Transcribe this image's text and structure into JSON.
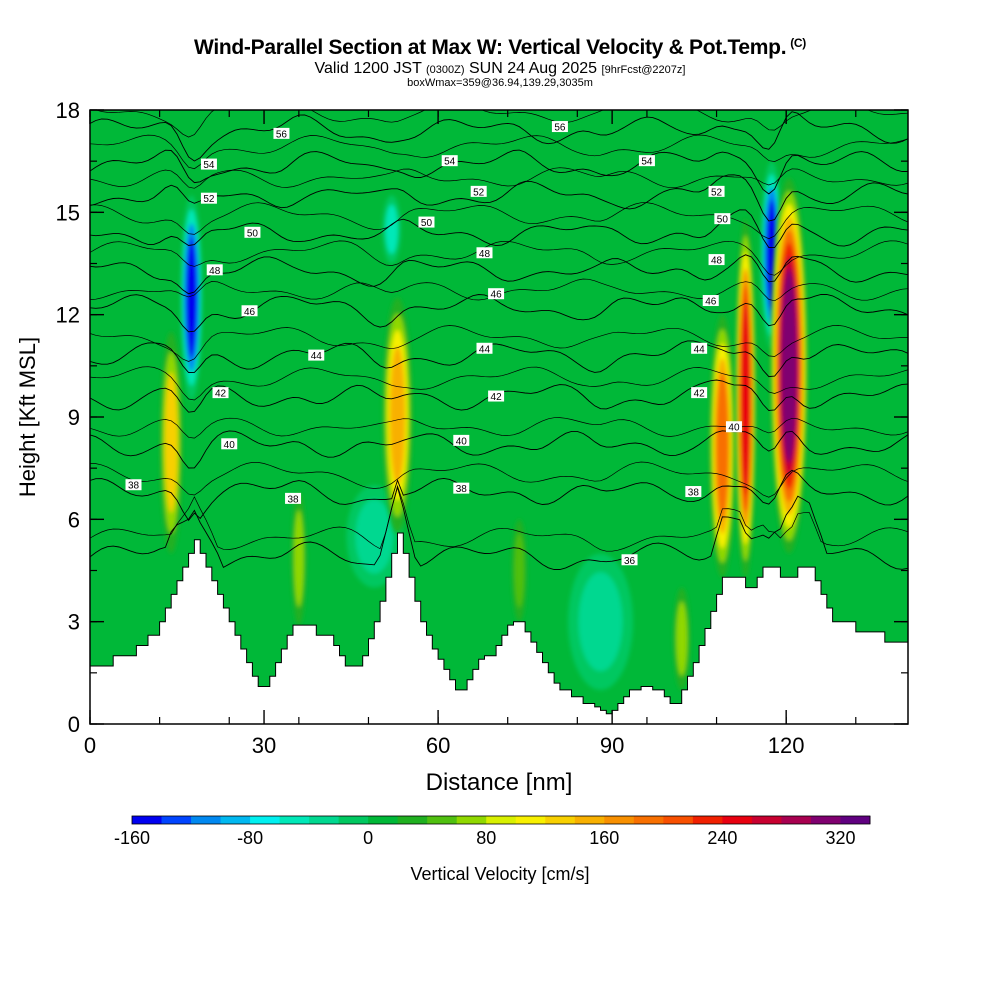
{
  "header": {
    "title": "Wind-Parallel Section at Max W: Vertical Velocity & Pot.Temp.",
    "title_mark": "(C)",
    "valid_prefix": "Valid 1200 JST",
    "valid_utc": "(0300Z)",
    "valid_date": "SUN 24 Aug 2025",
    "forecast_info": "[9hrFcst@2207z]",
    "box_info": "boxWmax=359@36.94,139.29,3035m"
  },
  "chart_data": {
    "type": "heatmap",
    "xlabel": "Distance [nm]",
    "ylabel": "Height [Kft MSL]",
    "xlim": [
      0,
      141
    ],
    "ylim": [
      0,
      18
    ],
    "x_ticks": [
      0,
      30,
      60,
      90,
      120
    ],
    "y_ticks": [
      0,
      3,
      6,
      9,
      12,
      15,
      18
    ],
    "background_w": 10,
    "terrain": [
      [
        0,
        1.7
      ],
      [
        3,
        1.7
      ],
      [
        4,
        2.0
      ],
      [
        7,
        2.0
      ],
      [
        8,
        2.3
      ],
      [
        9,
        2.3
      ],
      [
        10,
        2.6
      ],
      [
        11,
        2.6
      ],
      [
        12,
        3.0
      ],
      [
        13,
        3.4
      ],
      [
        14,
        3.8
      ],
      [
        15,
        4.2
      ],
      [
        16,
        4.6
      ],
      [
        17,
        5.0
      ],
      [
        18,
        5.4
      ],
      [
        19,
        5.0
      ],
      [
        20,
        4.6
      ],
      [
        21,
        4.2
      ],
      [
        22,
        3.8
      ],
      [
        23,
        3.4
      ],
      [
        24,
        3.0
      ],
      [
        25,
        2.6
      ],
      [
        26,
        2.2
      ],
      [
        27,
        1.8
      ],
      [
        28,
        1.4
      ],
      [
        29,
        1.1
      ],
      [
        30,
        1.1
      ],
      [
        31,
        1.4
      ],
      [
        32,
        1.8
      ],
      [
        33,
        2.2
      ],
      [
        34,
        2.6
      ],
      [
        35,
        2.9
      ],
      [
        38,
        2.9
      ],
      [
        39,
        2.6
      ],
      [
        41,
        2.6
      ],
      [
        42,
        2.3
      ],
      [
        43,
        2.0
      ],
      [
        44,
        1.7
      ],
      [
        46,
        1.7
      ],
      [
        47,
        2.0
      ],
      [
        48,
        2.5
      ],
      [
        49,
        3.0
      ],
      [
        50,
        3.6
      ],
      [
        51,
        4.3
      ],
      [
        52,
        5.0
      ],
      [
        53,
        5.6
      ],
      [
        54,
        5.0
      ],
      [
        55,
        4.3
      ],
      [
        56,
        3.6
      ],
      [
        57,
        3.0
      ],
      [
        58,
        2.6
      ],
      [
        59,
        2.2
      ],
      [
        60,
        1.9
      ],
      [
        61,
        1.6
      ],
      [
        62,
        1.3
      ],
      [
        63,
        1.0
      ],
      [
        64,
        1.0
      ],
      [
        65,
        1.3
      ],
      [
        66,
        1.6
      ],
      [
        67,
        1.9
      ],
      [
        68,
        2.0
      ],
      [
        70,
        2.3
      ],
      [
        71,
        2.6
      ],
      [
        72,
        2.9
      ],
      [
        73,
        3.0
      ],
      [
        75,
        2.7
      ],
      [
        76,
        2.4
      ],
      [
        77,
        2.1
      ],
      [
        78,
        1.8
      ],
      [
        79,
        1.5
      ],
      [
        80,
        1.2
      ],
      [
        81,
        1.0
      ],
      [
        83,
        0.8
      ],
      [
        85,
        0.6
      ],
      [
        87,
        0.5
      ],
      [
        88,
        0.4
      ],
      [
        89,
        0.3
      ],
      [
        90,
        0.4
      ],
      [
        91,
        0.6
      ],
      [
        92,
        0.8
      ],
      [
        93,
        1.0
      ],
      [
        95,
        1.1
      ],
      [
        97,
        1.0
      ],
      [
        99,
        0.8
      ],
      [
        100,
        0.6
      ],
      [
        101,
        0.6
      ],
      [
        102,
        1.0
      ],
      [
        103,
        1.4
      ],
      [
        104,
        1.8
      ],
      [
        105,
        2.3
      ],
      [
        106,
        2.8
      ],
      [
        107,
        3.3
      ],
      [
        108,
        3.8
      ],
      [
        109,
        4.3
      ],
      [
        112,
        4.3
      ],
      [
        113,
        4.0
      ],
      [
        114,
        4.0
      ],
      [
        115,
        4.3
      ],
      [
        116,
        4.6
      ],
      [
        118,
        4.6
      ],
      [
        119,
        4.3
      ],
      [
        121,
        4.3
      ],
      [
        122,
        4.6
      ],
      [
        124,
        4.6
      ],
      [
        125,
        4.2
      ],
      [
        126,
        3.8
      ],
      [
        127,
        3.4
      ],
      [
        128,
        3.0
      ],
      [
        131,
        3.0
      ],
      [
        132,
        2.7
      ],
      [
        136,
        2.7
      ],
      [
        137,
        2.4
      ],
      [
        140,
        2.4
      ],
      [
        141,
        2.0
      ]
    ],
    "updrafts": [
      {
        "x": 14,
        "ybot": 5.0,
        "ytop": 11.5,
        "w": 1.2,
        "peak": 120
      },
      {
        "x": 36,
        "ybot": 2.9,
        "ytop": 6.8,
        "w": 0.8,
        "peak": 70
      },
      {
        "x": 53,
        "ybot": 5.6,
        "ytop": 12.5,
        "w": 1.6,
        "peak": 140
      },
      {
        "x": 74,
        "ybot": 3.0,
        "ytop": 6.0,
        "w": 0.8,
        "peak": 50
      },
      {
        "x": 102,
        "ybot": 1.0,
        "ytop": 4.0,
        "w": 0.9,
        "peak": 70
      },
      {
        "x": 109,
        "ybot": 4.3,
        "ytop": 12.0,
        "w": 1.4,
        "peak": 180
      },
      {
        "x": 113,
        "ybot": 4.3,
        "ytop": 14.8,
        "w": 1.1,
        "peak": 250
      },
      {
        "x": 120.5,
        "ybot": 5.0,
        "ytop": 16.0,
        "w": 2.0,
        "peak": 300
      }
    ],
    "downdrafts": [
      {
        "x": 17.5,
        "ybot": 9.5,
        "ytop": 15.5,
        "w": 1.2,
        "peak": -160
      },
      {
        "x": 52,
        "ybot": 13.5,
        "ytop": 15.5,
        "w": 1.0,
        "peak": -60
      },
      {
        "x": 117.5,
        "ybot": 11.0,
        "ytop": 16.5,
        "w": 1.2,
        "peak": -160
      },
      {
        "x": 49,
        "ybot": 4.0,
        "ytop": 7.0,
        "w": 3.0,
        "peak": -30
      },
      {
        "x": 88,
        "ybot": 1.0,
        "ytop": 5.0,
        "w": 3.5,
        "peak": -30
      }
    ],
    "theta_contours": [
      {
        "level": 36,
        "y": 4.9
      },
      {
        "level": 38,
        "y": 6.8
      },
      {
        "level": 40,
        "y": 8.2
      },
      {
        "level": 42,
        "y": 9.6
      },
      {
        "level": 44,
        "y": 10.8
      },
      {
        "level": 46,
        "y": 12.2
      },
      {
        "level": 48,
        "y": 13.3
      },
      {
        "level": 50,
        "y": 14.4
      },
      {
        "level": 52,
        "y": 15.5
      },
      {
        "level": 54,
        "y": 16.4
      },
      {
        "level": 56,
        "y": 17.4
      }
    ],
    "contour_labels": [
      {
        "text": "56",
        "x": 33,
        "y": 17.3
      },
      {
        "text": "56",
        "x": 81,
        "y": 17.5
      },
      {
        "text": "54",
        "x": 20.5,
        "y": 16.4
      },
      {
        "text": "54",
        "x": 62,
        "y": 16.5
      },
      {
        "text": "54",
        "x": 96,
        "y": 16.5
      },
      {
        "text": "52",
        "x": 20.5,
        "y": 15.4
      },
      {
        "text": "52",
        "x": 67,
        "y": 15.6
      },
      {
        "text": "52",
        "x": 108,
        "y": 15.6
      },
      {
        "text": "50",
        "x": 28,
        "y": 14.4
      },
      {
        "text": "50",
        "x": 58,
        "y": 14.7
      },
      {
        "text": "50",
        "x": 109,
        "y": 14.8
      },
      {
        "text": "48",
        "x": 21.5,
        "y": 13.3
      },
      {
        "text": "48",
        "x": 68,
        "y": 13.8
      },
      {
        "text": "48",
        "x": 108,
        "y": 13.6
      },
      {
        "text": "46",
        "x": 27.5,
        "y": 12.1
      },
      {
        "text": "46",
        "x": 70,
        "y": 12.6
      },
      {
        "text": "46",
        "x": 107,
        "y": 12.4
      },
      {
        "text": "44",
        "x": 39,
        "y": 10.8
      },
      {
        "text": "44",
        "x": 68,
        "y": 11.0
      },
      {
        "text": "44",
        "x": 105,
        "y": 11.0
      },
      {
        "text": "42",
        "x": 22.5,
        "y": 9.7
      },
      {
        "text": "42",
        "x": 70,
        "y": 9.6
      },
      {
        "text": "42",
        "x": 105,
        "y": 9.7
      },
      {
        "text": "40",
        "x": 24,
        "y": 8.2
      },
      {
        "text": "40",
        "x": 64,
        "y": 8.3
      },
      {
        "text": "40",
        "x": 111,
        "y": 8.7
      },
      {
        "text": "38",
        "x": 7.5,
        "y": 7.0
      },
      {
        "text": "38",
        "x": 35,
        "y": 6.6
      },
      {
        "text": "38",
        "x": 64,
        "y": 6.9
      },
      {
        "text": "38",
        "x": 104,
        "y": 6.8
      },
      {
        "text": "36",
        "x": 93,
        "y": 4.8
      }
    ],
    "colorbar": {
      "label": "Vertical Velocity [cm/s]",
      "tick_labels": [
        "-160",
        "-80",
        "0",
        "80",
        "160",
        "240",
        "320"
      ],
      "tick_values": [
        -160,
        -80,
        0,
        80,
        160,
        240,
        320
      ],
      "range": [
        -160,
        340
      ],
      "step": 20,
      "colors": [
        "#0000f0",
        "#0044ff",
        "#0088f0",
        "#00b8f0",
        "#00f0f0",
        "#00e8b8",
        "#00d890",
        "#00c860",
        "#00b838",
        "#20b020",
        "#50c010",
        "#90d800",
        "#d8f000",
        "#f8f000",
        "#f8d000",
        "#f8b000",
        "#f89000",
        "#f87000",
        "#f85000",
        "#f02000",
        "#e80010",
        "#c80030",
        "#a80050",
        "#800070",
        "#600080"
      ]
    }
  }
}
